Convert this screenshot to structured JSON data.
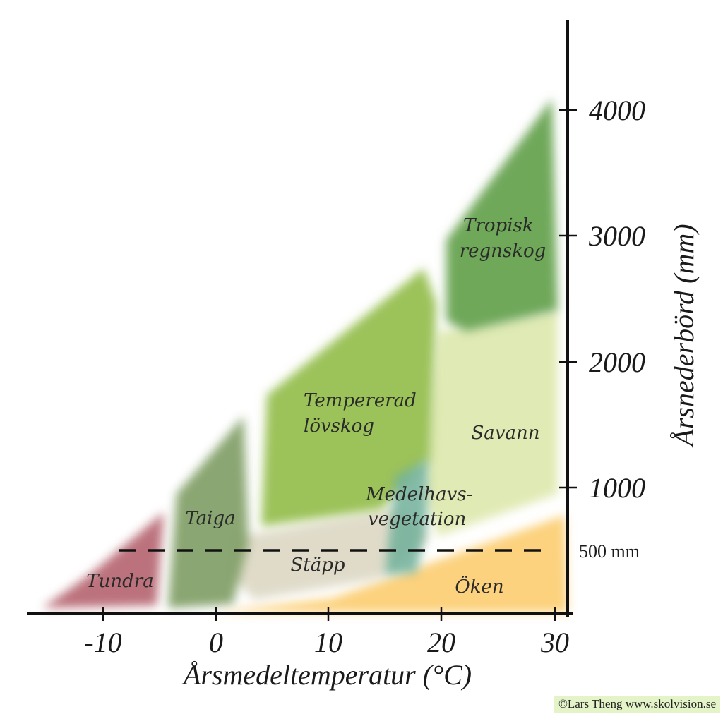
{
  "diagram": {
    "x_axis": {
      "title": "Årsmedeltemperatur (°C)",
      "ticks": [
        {
          "value": -10,
          "label": "-10"
        },
        {
          "value": 0,
          "label": "0"
        },
        {
          "value": 10,
          "label": "10"
        },
        {
          "value": 20,
          "label": "20"
        },
        {
          "value": 30,
          "label": "30"
        }
      ]
    },
    "y_axis": {
      "title": "Årsnederbörd (mm)",
      "ticks": [
        {
          "value": 1000,
          "label": "1000"
        },
        {
          "value": 2000,
          "label": "2000"
        },
        {
          "value": 3000,
          "label": "3000"
        },
        {
          "value": 4000,
          "label": "4000"
        }
      ]
    },
    "reference_line": {
      "value": 500,
      "label": "500 mm"
    },
    "biomes": [
      {
        "name": "Tundra",
        "color": "#b05a66"
      },
      {
        "name": "Taiga",
        "color": "#7a9a5e"
      },
      {
        "name": "Tempererad lövskog",
        "line1": "Tempererad",
        "line2": "lövskog",
        "color": "#9cc25a"
      },
      {
        "name": "Tropisk regnskog",
        "line1": "Tropisk",
        "line2": "regnskog",
        "color": "#6fa85a"
      },
      {
        "name": "Savann",
        "color": "#dfe9b0"
      },
      {
        "name": "Medelhavsvegetation",
        "line1": "Medelhavs-",
        "line2": "vegetation",
        "color": "#6fb09a"
      },
      {
        "name": "Stäpp",
        "color": "#ddd8c4"
      },
      {
        "name": "Öken",
        "color": "#fcd27e"
      }
    ],
    "credit": "©Lars Theng www.skolvision.se"
  }
}
